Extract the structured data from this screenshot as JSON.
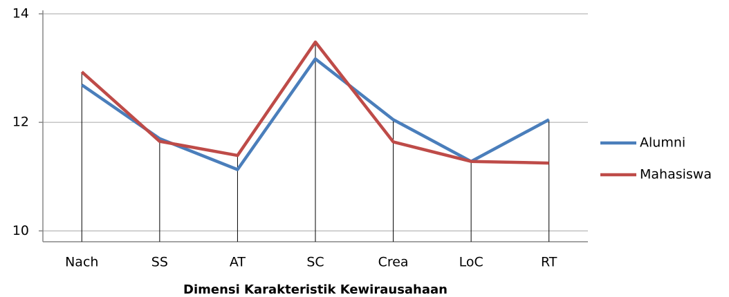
{
  "chart_data": {
    "type": "line",
    "x_label": "Dimensi Karakteristik Kewirausahaan",
    "categories": [
      "Nach",
      "SS",
      "AT",
      "SC",
      "Crea",
      "LoC",
      "RT"
    ],
    "series": [
      {
        "name": "Alumni",
        "color": "#4a7ebb",
        "values": [
          12.69,
          11.7,
          11.13,
          13.17,
          12.05,
          11.28,
          12.05
        ]
      },
      {
        "name": "Mahasiswa",
        "color": "#be4b48",
        "values": [
          12.93,
          11.65,
          11.39,
          13.48,
          11.64,
          11.28,
          11.25
        ]
      }
    ],
    "ylim": [
      9.8,
      14
    ],
    "yticks": [
      10,
      12,
      14
    ],
    "grid": true,
    "drop_lines": true,
    "legend": "right"
  }
}
